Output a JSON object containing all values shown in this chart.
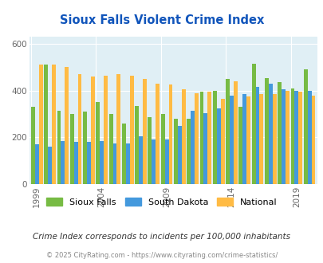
{
  "years": [
    1999,
    2000,
    2001,
    2002,
    2003,
    2004,
    2005,
    2006,
    2007,
    2008,
    2009,
    2010,
    2011,
    2012,
    2013,
    2014,
    2015,
    2016,
    2017,
    2018,
    2019,
    2020
  ],
  "sioux_falls": [
    330,
    510,
    315,
    300,
    310,
    350,
    300,
    260,
    335,
    285,
    300,
    280,
    280,
    395,
    400,
    450,
    330,
    515,
    455,
    435,
    410,
    490
  ],
  "south_dakota": [
    170,
    160,
    185,
    180,
    180,
    185,
    175,
    175,
    205,
    190,
    190,
    250,
    315,
    305,
    325,
    380,
    385,
    415,
    430,
    405,
    400,
    400
  ],
  "national": [
    510,
    510,
    500,
    470,
    460,
    465,
    470,
    465,
    450,
    430,
    425,
    405,
    390,
    395,
    365,
    440,
    375,
    385,
    385,
    400,
    395,
    380
  ],
  "title": "Sioux Falls Violent Crime Index",
  "yticks": [
    0,
    200,
    400,
    600
  ],
  "xtick_labels": [
    "1999",
    "2004",
    "2009",
    "2014",
    "2019"
  ],
  "xtick_positions": [
    0,
    5,
    10,
    15,
    20
  ],
  "sioux_color": "#77bb44",
  "sd_color": "#4499dd",
  "national_color": "#ffbb44",
  "bg_color": "#e0eff5",
  "title_color": "#1155bb",
  "legend_labels": [
    "Sioux Falls",
    "South Dakota",
    "National"
  ],
  "subtitle": "Crime Index corresponds to incidents per 100,000 inhabitants",
  "footer": "© 2025 CityRating.com - https://www.cityrating.com/crime-statistics/",
  "ylim": [
    0,
    630
  ],
  "bar_width": 0.3
}
